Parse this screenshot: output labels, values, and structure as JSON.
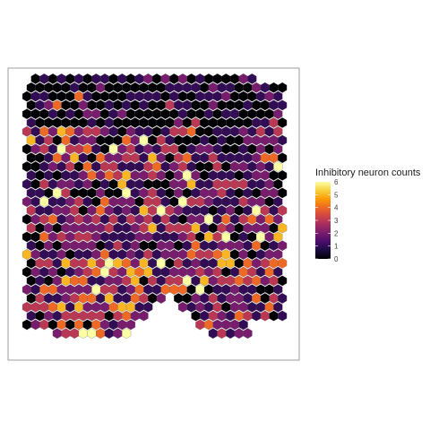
{
  "chart_data": {
    "type": "heatmap",
    "title": "",
    "legend": {
      "title": "Inhibitory neuron counts",
      "placement": "right",
      "min": 0,
      "max": 6,
      "ticks": [
        "0",
        "1",
        "2",
        "3",
        "4",
        "5",
        "6"
      ]
    },
    "colormap": [
      "#000004",
      "#1b0c41",
      "#4a0c6b",
      "#781c6d",
      "#a52c60",
      "#cf4446",
      "#ed6925",
      "#fb9b06",
      "#f7d13d",
      "#fcffa4"
    ],
    "grid": {
      "cols": 30,
      "rows": 30,
      "cell_size": 1,
      "bottom_profile": [
        0,
        0,
        0,
        0,
        0,
        0,
        0,
        0,
        0,
        0,
        0,
        0,
        0,
        0,
        0,
        0,
        0,
        0,
        0,
        0,
        0,
        0,
        0,
        0,
        0,
        0,
        0,
        0,
        0,
        0
      ],
      "notch_profile": {
        "cols": [
          11,
          12,
          13,
          14,
          15,
          16,
          17,
          18,
          19,
          20,
          21
        ],
        "cut": [
          0,
          1,
          2,
          3,
          4,
          5,
          4,
          3,
          2,
          1,
          0
        ]
      }
    },
    "values_seed": 7,
    "region_means": [
      {
        "region": "top",
        "mean": 0.6
      },
      {
        "region": "upper-left",
        "mean": 2.2
      },
      {
        "region": "upper-right",
        "mean": 1.6
      },
      {
        "region": "middle",
        "mean": 2.0
      },
      {
        "region": "lower-left",
        "mean": 2.8
      },
      {
        "region": "lower-right",
        "mean": 2.0
      },
      {
        "region": "left-edge",
        "mean": 0.8
      }
    ]
  }
}
